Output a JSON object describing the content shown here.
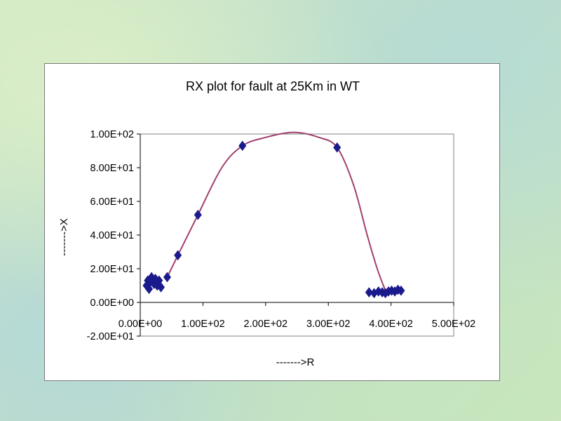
{
  "chart_data": {
    "type": "scatter",
    "title": "RX plot for fault at 25Km in  WT",
    "xlabel": "------->R",
    "ylabel": "------->X",
    "xlim": [
      0,
      500
    ],
    "ylim": [
      -20,
      100
    ],
    "x_ticks": [
      0,
      100,
      200,
      300,
      400,
      500
    ],
    "x_tick_labels": [
      "0.00E+00",
      "1.00E+02",
      "2.00E+02",
      "3.00E+02",
      "4.00E+02",
      "5.00E+02"
    ],
    "y_ticks": [
      -20,
      0,
      20,
      40,
      60,
      80,
      100
    ],
    "y_tick_labels": [
      "-2.00E+01",
      "0.00E+00",
      "2.00E+01",
      "4.00E+01",
      "6.00E+01",
      "8.00E+01",
      "1.00E+02"
    ],
    "grid": false,
    "legend": "none",
    "marker_color": "#1a1a8c",
    "line_color": "#a0406e",
    "points": [
      {
        "x": 10,
        "y": 10
      },
      {
        "x": 12,
        "y": 13
      },
      {
        "x": 14,
        "y": 8
      },
      {
        "x": 16,
        "y": 12
      },
      {
        "x": 18,
        "y": 15
      },
      {
        "x": 22,
        "y": 11
      },
      {
        "x": 24,
        "y": 14
      },
      {
        "x": 27,
        "y": 10
      },
      {
        "x": 30,
        "y": 13
      },
      {
        "x": 33,
        "y": 9
      },
      {
        "x": 43,
        "y": 15
      },
      {
        "x": 60,
        "y": 28
      },
      {
        "x": 92,
        "y": 52
      },
      {
        "x": 163,
        "y": 93
      },
      {
        "x": 314,
        "y": 92
      },
      {
        "x": 365,
        "y": 6
      },
      {
        "x": 373,
        "y": 5.5
      },
      {
        "x": 380,
        "y": 6.5
      },
      {
        "x": 386,
        "y": 6
      },
      {
        "x": 391,
        "y": 5.5
      },
      {
        "x": 396,
        "y": 6.5
      },
      {
        "x": 401,
        "y": 7
      },
      {
        "x": 406,
        "y": 6.5
      },
      {
        "x": 411,
        "y": 7.5
      },
      {
        "x": 416,
        "y": 7
      }
    ],
    "curve": [
      {
        "x": 43,
        "y": 15
      },
      {
        "x": 60,
        "y": 28
      },
      {
        "x": 92,
        "y": 52
      },
      {
        "x": 130,
        "y": 80
      },
      {
        "x": 163,
        "y": 93
      },
      {
        "x": 200,
        "y": 98
      },
      {
        "x": 245,
        "y": 101
      },
      {
        "x": 285,
        "y": 98
      },
      {
        "x": 314,
        "y": 92
      },
      {
        "x": 340,
        "y": 70
      },
      {
        "x": 362,
        "y": 40
      },
      {
        "x": 378,
        "y": 20
      },
      {
        "x": 390,
        "y": 8
      }
    ]
  }
}
